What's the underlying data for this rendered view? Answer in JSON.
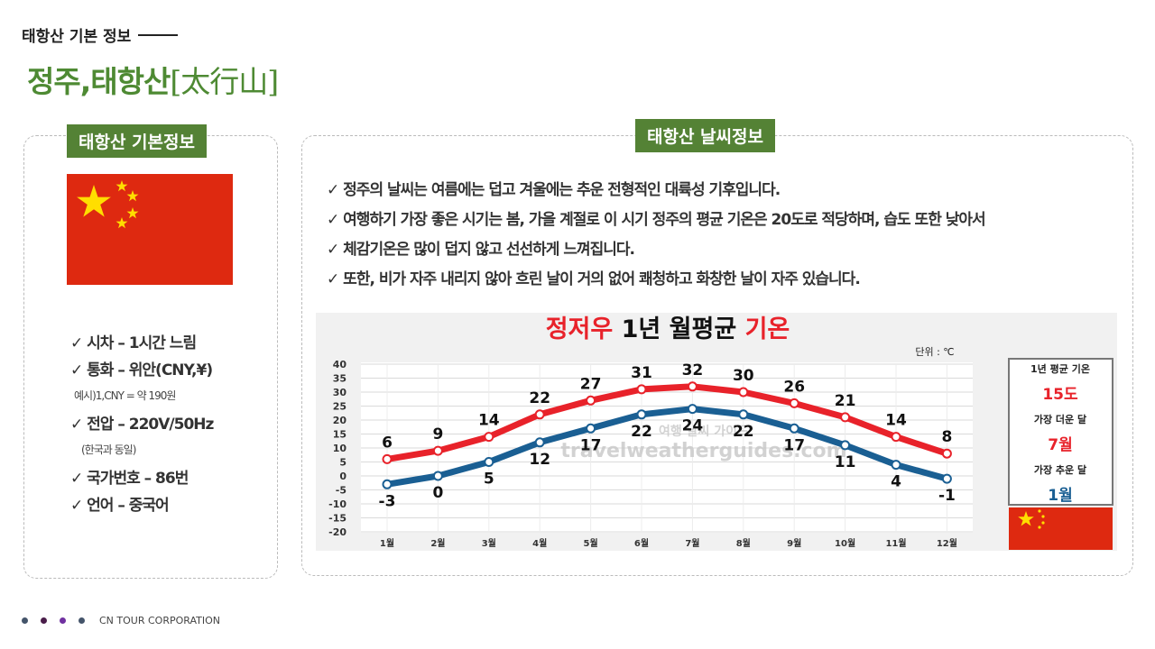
{
  "header": {
    "eyebrow": "태항산 기본 정보",
    "title_main": "정주,태항산",
    "title_hanja": "[太行山]"
  },
  "left_panel": {
    "tag": "태항산 기본정보",
    "items": [
      {
        "text": "✓ 시차 – 1시간 느림"
      },
      {
        "text": "✓ 통화 – 위안(CNY,¥)"
      },
      {
        "sub": "예시)1,CNY = 약 190원"
      },
      {
        "text": "✓ 전압 – 220V/50Hz"
      },
      {
        "sub": "(한국과 동일)"
      },
      {
        "text": "✓ 국가번호 – 86번"
      },
      {
        "text": "✓ 언어 – 중국어"
      }
    ]
  },
  "right_panel": {
    "tag": "태항산 날씨정보",
    "bullets": [
      "✓ 정주의 날씨는 여름에는 덥고 겨울에는 추운 전형적인 대륙성 기후입니다.",
      "✓ 여행하기 가장 좋은 시기는 봄, 가을 계절로 이 시기 정주의 평균 기온은 20도로 적당하며, 습도 또한 낮아서",
      "✓ 체감기온은 많이 덥지 않고 선선하게 느껴집니다.",
      "✓ 또한, 비가 자주 내리지 않아 흐린 날이 거의 없어 쾌청하고 화창한 날이 자주 있습니다."
    ]
  },
  "chart_data": {
    "type": "line",
    "title_parts": [
      {
        "text": "정저우",
        "color": "#e8222a"
      },
      {
        "text": " 1년 월평균 ",
        "color": "#111111"
      },
      {
        "text": "기온",
        "color": "#e8222a"
      }
    ],
    "unit": "단위 : ℃",
    "categories": [
      "1월",
      "2월",
      "3월",
      "4월",
      "5월",
      "6월",
      "7월",
      "8월",
      "9월",
      "10월",
      "11월",
      "12월"
    ],
    "ylim": [
      -20,
      40
    ],
    "yticks": [
      40,
      35,
      30,
      25,
      20,
      15,
      10,
      5,
      0,
      -5,
      -10,
      -15,
      -20
    ],
    "grid": true,
    "series": [
      {
        "values": [
          6,
          9,
          14,
          22,
          27,
          31,
          32,
          30,
          26,
          21,
          14,
          8
        ],
        "color": "#e8222a"
      },
      {
        "values": [
          -3,
          0,
          5,
          12,
          17,
          22,
          24,
          22,
          17,
          11,
          4,
          -1
        ],
        "color": "#1a5f93"
      }
    ],
    "side_box": {
      "label_avg": "1년 평균 기온",
      "avg_value": "15도",
      "label_hot": "가장 더운 달",
      "hot_value": "7월",
      "label_cold": "가장 추운 달",
      "cold_value": "1월"
    },
    "watermark_top": "여행 날씨 가이드",
    "watermark": "travelweatherguides.com"
  },
  "colors": {
    "accent_green": "#548235",
    "title_green": "#4e8a33",
    "flag_red": "#de2910",
    "flag_yellow": "#ffde00"
  },
  "footer": {
    "company": "CN TOUR CORPORATION",
    "dot_colors": [
      "#44546a",
      "#4a1d4a",
      "#7030a0",
      "#44546a"
    ]
  }
}
